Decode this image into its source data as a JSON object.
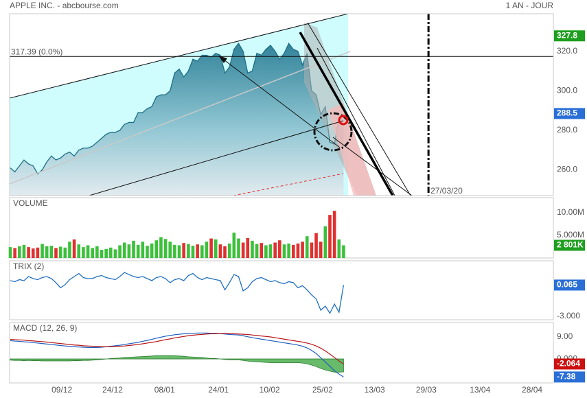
{
  "header": {
    "title": "APPLE INC. - abcbourse.com",
    "period": "1 AN - JOUR"
  },
  "x_axis": {
    "x": [
      0,
      1,
      2,
      3,
      4,
      5,
      6,
      7,
      8,
      9,
      10,
      11,
      12,
      13,
      14,
      15,
      16,
      17,
      18,
      19,
      20,
      21,
      22,
      23,
      24,
      25,
      26,
      27,
      28,
      29,
      30,
      31,
      32,
      33,
      34,
      35,
      36,
      37,
      38,
      39,
      40,
      41,
      42,
      43,
      44,
      45,
      46,
      47,
      48,
      49,
      50,
      51,
      52,
      53,
      54,
      55,
      56,
      57,
      58,
      59,
      60,
      61,
      62,
      63,
      64,
      65,
      66,
      67,
      68,
      69,
      70,
      71,
      72,
      73
    ],
    "xlim": [
      -0.15,
      118.95
    ],
    "xticks": [
      {
        "value": 11.3,
        "label": "09/12"
      },
      {
        "value": 22.4,
        "label": "24/12"
      },
      {
        "value": 33.8,
        "label": "08/01"
      },
      {
        "value": 45.6,
        "label": "24/01"
      },
      {
        "value": 56.8,
        "label": "10/02"
      },
      {
        "value": 68.4,
        "label": "25/02"
      },
      {
        "value": 79.8,
        "label": "13/03"
      },
      {
        "value": 91.1,
        "label": "29/03"
      },
      {
        "value": 102.9,
        "label": "13/04"
      },
      {
        "value": 114.3,
        "label": "28/04"
      }
    ]
  },
  "chart_data": [
    {
      "type": "area",
      "color": "#1e6e85",
      "values": [
        261,
        259,
        262,
        265,
        263,
        262,
        258,
        260,
        264,
        267,
        265,
        266,
        268,
        269,
        267,
        270,
        271,
        271,
        272,
        274,
        276,
        278,
        279,
        279,
        280,
        283,
        284,
        284,
        289,
        289,
        291,
        292,
        297,
        298,
        298,
        300,
        309,
        311,
        307,
        310,
        316,
        315,
        318,
        318,
        317,
        319,
        318,
        309,
        312,
        321,
        324,
        320,
        309,
        310,
        319,
        318,
        321,
        323,
        320,
        316,
        319,
        324,
        321,
        320,
        313,
        319,
        300,
        298,
        288,
        292,
        274,
        273,
        286,
        288.5
      ],
      "ylim": [
        247,
        339
      ],
      "yticks": [
        {
          "value": 260,
          "label": "260.0"
        },
        {
          "value": 280,
          "label": "280.0"
        },
        {
          "value": 300,
          "label": "300.0"
        },
        {
          "value": 320,
          "label": "320.0"
        }
      ],
      "tags": [
        {
          "value": 327.8,
          "color": "#1e9e1e"
        },
        {
          "value": 288.5,
          "color": "#2a6fd6"
        }
      ],
      "hline": {
        "value": 317.39,
        "label": "317.39  (0.0%)"
      },
      "vline": {
        "x": 91.6,
        "label": "27/03/20"
      }
    },
    {
      "type": "bar",
      "title": "VOLUME",
      "title_color": "#3cb83c",
      "up_color": "#3cc03c",
      "down_color": "#e03030",
      "values": [
        2.4,
        2.2,
        2.6,
        2.9,
        2.4,
        2.1,
        2.3,
        3.1,
        2.6,
        2.7,
        2.2,
        2.5,
        2.3,
        3.6,
        4.1,
        3.0,
        2.4,
        2.8,
        2.2,
        2.6,
        1.8,
        2.0,
        2.3,
        1.9,
        2.8,
        3.4,
        3.0,
        3.8,
        2.9,
        3.6,
        2.7,
        3.2,
        3.9,
        4.6,
        4.2,
        3.6,
        2.9,
        2.8,
        3.3,
        3.1,
        2.7,
        3.0,
        2.8,
        3.6,
        4.3,
        4.1,
        3.0,
        2.6,
        3.2,
        5.6,
        4.3,
        3.4,
        4.4,
        3.8,
        3.1,
        3.3,
        2.8,
        3.0,
        3.4,
        3.9,
        3.0,
        3.2,
        2.9,
        3.2,
        3.6,
        4.8,
        3.4,
        5.5,
        3.6,
        7.0,
        9.5,
        10.4,
        4.1,
        2.801
      ],
      "ylim": [
        0,
        13.3
      ],
      "yticks": [
        {
          "value": 5,
          "label": "5.000M"
        },
        {
          "value": 10,
          "label": "10.00M"
        }
      ],
      "tags": [
        {
          "value": 2.801,
          "label": "2 801K",
          "color": "#1e9e1e"
        }
      ]
    },
    {
      "type": "line",
      "title": "TRIX (2)",
      "title_color": "#1f5fbf",
      "color": "#1f6fc0",
      "values": [
        0.5,
        0.4,
        0.6,
        0.5,
        0.9,
        0.7,
        0.6,
        0.8,
        0.9,
        0.7,
        0.3,
        -0.2,
        0.1,
        0.6,
        0.9,
        1.2,
        0.8,
        0.7,
        0.7,
        0.9,
        1.0,
        0.8,
        0.7,
        0.6,
        0.9,
        1.3,
        1.1,
        0.9,
        0.8,
        0.9,
        0.7,
        0.5,
        0.8,
        0.9,
        0.7,
        0.3,
        0.6,
        0.7,
        0.5,
        1.0,
        1.2,
        0.8,
        0.6,
        0.8,
        0.7,
        0.6,
        0.5,
        -0.4,
        0.3,
        1.1,
        0.9,
        -0.5,
        -0.2,
        0.4,
        0.7,
        0.8,
        0.6,
        0.4,
        0.5,
        0.3,
        0.2,
        0.4,
        0.3,
        -0.2,
        0.0,
        -0.4,
        -0.9,
        -1.3,
        -2.4,
        -2.0,
        -2.7,
        -1.8,
        -2.6,
        0.065
      ],
      "ylim": [
        -3.34,
        2.45
      ],
      "yticks": [
        {
          "value": -3,
          "label": "-3.000"
        }
      ],
      "tags": [
        {
          "value": 0.065,
          "color": "#2a6fd6"
        }
      ]
    },
    {
      "type": "macd",
      "title": "MACD (12, 26, 9)",
      "title_color": "#1f5fbf",
      "series": [
        {
          "color": "#1f5fbf",
          "values": [
            7.5,
            7.3,
            7.2,
            7.0,
            6.9,
            6.7,
            6.5,
            6.3,
            6.1,
            5.9,
            5.7,
            5.5,
            5.3,
            5.1,
            5.0,
            4.9,
            4.8,
            4.7,
            4.7,
            4.7,
            4.8,
            5.0,
            5.2,
            5.4,
            5.6,
            5.9,
            6.2,
            6.5,
            6.8,
            7.2,
            7.6,
            8.0,
            8.5,
            8.9,
            9.3,
            9.6,
            9.9,
            10.1,
            10.3,
            10.4,
            10.5,
            10.6,
            10.6,
            10.6,
            10.5,
            10.5,
            10.4,
            10.2,
            10.0,
            9.9,
            9.8,
            9.5,
            9.1,
            8.7,
            8.4,
            8.1,
            7.8,
            7.5,
            7.2,
            6.9,
            6.6,
            6.3,
            6.0,
            5.7,
            5.2,
            4.5,
            3.5,
            2.2,
            0.5,
            -1.2,
            -3.0,
            -4.8,
            -6.2,
            -7.38
          ]
        },
        {
          "color": "#b81414",
          "values": [
            8.0,
            7.9,
            7.8,
            7.7,
            7.5,
            7.4,
            7.2,
            7.1,
            6.9,
            6.7,
            6.5,
            6.3,
            6.1,
            5.9,
            5.7,
            5.6,
            5.4,
            5.3,
            5.2,
            5.1,
            5.0,
            5.0,
            5.0,
            5.1,
            5.2,
            5.3,
            5.5,
            5.7,
            5.9,
            6.2,
            6.5,
            6.8,
            7.1,
            7.5,
            7.9,
            8.2,
            8.6,
            8.9,
            9.2,
            9.5,
            9.7,
            9.9,
            10.0,
            10.2,
            10.3,
            10.3,
            10.4,
            10.4,
            10.4,
            10.3,
            10.2,
            10.1,
            10.0,
            9.8,
            9.6,
            9.4,
            9.2,
            9.0,
            8.7,
            8.4,
            8.1,
            7.8,
            7.5,
            7.2,
            6.9,
            6.5,
            6.0,
            5.3,
            4.4,
            3.3,
            2.0,
            0.6,
            -0.8,
            -2.064
          ]
        }
      ],
      "histogram": {
        "color": "#4caf50",
        "values": [
          -0.5,
          -0.6,
          -0.6,
          -0.7,
          -0.6,
          -0.7,
          -0.7,
          -0.8,
          -0.8,
          -0.8,
          -0.8,
          -0.8,
          -0.8,
          -0.8,
          -0.7,
          -0.7,
          -0.6,
          -0.6,
          -0.5,
          -0.4,
          -0.2,
          0.0,
          0.2,
          0.3,
          0.4,
          0.6,
          0.7,
          0.8,
          0.9,
          1.0,
          1.1,
          1.2,
          1.4,
          1.4,
          1.4,
          1.4,
          1.3,
          1.2,
          1.1,
          0.9,
          0.8,
          0.7,
          0.6,
          0.4,
          0.2,
          0.2,
          0.0,
          -0.2,
          -0.4,
          -0.4,
          -0.4,
          -0.6,
          -0.9,
          -1.1,
          -1.2,
          -1.3,
          -1.4,
          -1.5,
          -1.5,
          -1.5,
          -1.5,
          -1.5,
          -1.5,
          -1.5,
          -1.7,
          -2.0,
          -2.5,
          -3.1,
          -3.9,
          -4.5,
          -5.0,
          -5.4,
          -5.4,
          -5.3
        ]
      },
      "ylim": [
        -9.8,
        14.9
      ],
      "yticks": [
        {
          "value": 0,
          "label": "0.000"
        },
        {
          "value": 9,
          "label": "9.00"
        }
      ],
      "tags": [
        {
          "value": -2.064,
          "color": "#cc1111"
        },
        {
          "value": -7.38,
          "color": "#2a6fd6"
        }
      ]
    }
  ]
}
